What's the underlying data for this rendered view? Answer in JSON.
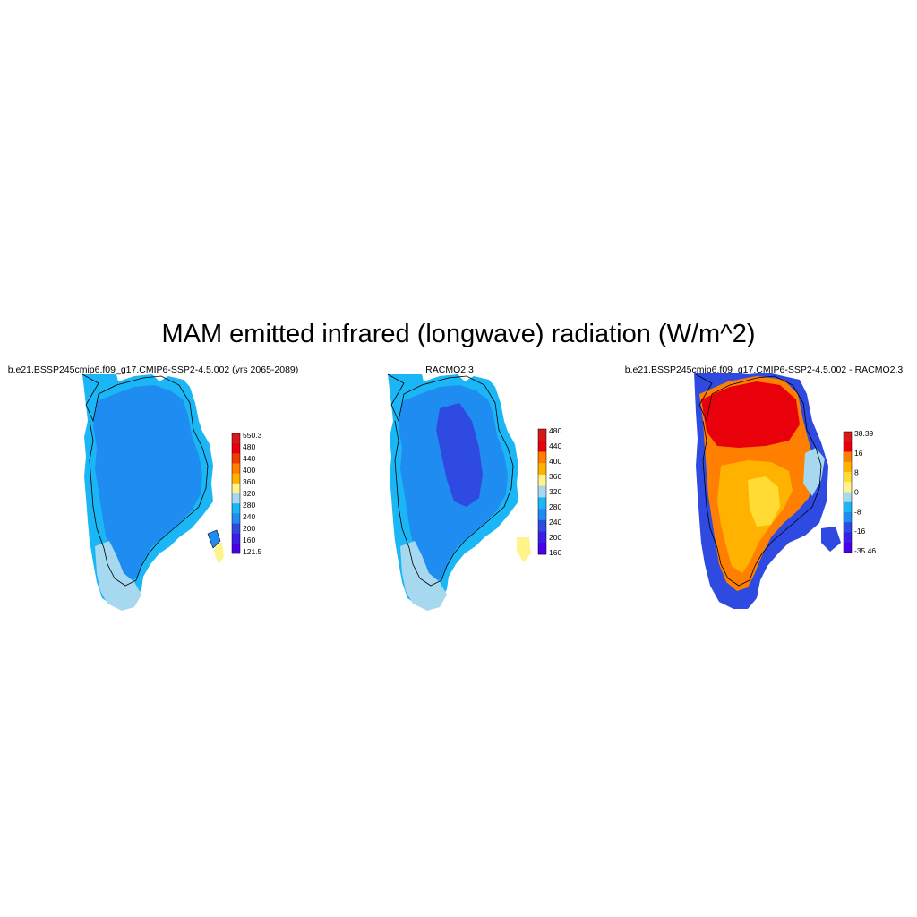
{
  "title": "MAM emitted infrared (longwave) radiation (W/m^2)",
  "panels": [
    {
      "title": "b.e21.BSSP245cmip6.f09_g17.CMIP6-SSP2-4.5.002 (yrs 2065-2089)",
      "colorbar": {
        "labels": [
          "550.3",
          "480",
          "440",
          "400",
          "360",
          "320",
          "280",
          "240",
          "200",
          "160",
          "121.5"
        ],
        "colors": [
          "#d7191c",
          "#e8000b",
          "#f03c00",
          "#ff7f00",
          "#ffb300",
          "#fff38c",
          "#a6d8f0",
          "#1ab6f5",
          "#1e8cf0",
          "#2f4ae0",
          "#3a1fe8",
          "#4b00e8"
        ]
      },
      "fills": {
        "main": "#1e8cf0",
        "margin": "#1ab6f5",
        "low": "#a6d8f0",
        "hot": "#fff38c"
      }
    },
    {
      "title": "RACMO2.3",
      "colorbar": {
        "labels": [
          "480",
          "440",
          "400",
          "360",
          "320",
          "280",
          "240",
          "200",
          "160"
        ],
        "colors": [
          "#d7191c",
          "#e8000b",
          "#ff7f00",
          "#ffb300",
          "#fff38c",
          "#a6d8f0",
          "#1ab6f5",
          "#1e8cf0",
          "#2f4ae0",
          "#3a1fe8",
          "#4b00e8"
        ]
      },
      "fills": {
        "main": "#1e8cf0",
        "center": "#2f4ae0",
        "margin": "#1ab6f5",
        "low": "#a6d8f0",
        "hot": "#fff38c"
      }
    },
    {
      "title": "b.e21.BSSP245cmip6.f09_g17.CMIP6-SSP2-4.5.002 - RACMO2.3",
      "colorbar": {
        "labels": [
          "38.39",
          "16",
          "8",
          "0",
          "-8",
          "-16",
          "-35.46"
        ],
        "colors": [
          "#d7191c",
          "#e8000b",
          "#ff7f00",
          "#ffb300",
          "#ffdb33",
          "#fff38c",
          "#a6d8f0",
          "#1ab6f5",
          "#1e8cf0",
          "#2f4ae0",
          "#3a1fe8",
          "#4b00e8"
        ]
      },
      "fills": {
        "north": "#e8000b",
        "upper": "#ff7f00",
        "mid": "#ffb300",
        "south": "#ffdb33",
        "edgeBlue": "#2f4ae0",
        "edgeLight": "#a6d8f0"
      }
    }
  ]
}
